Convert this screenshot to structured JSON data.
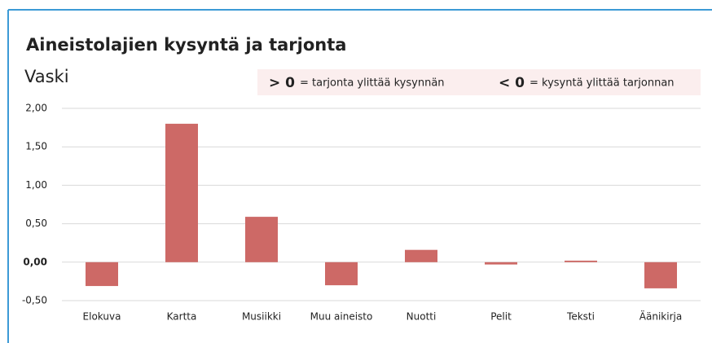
{
  "chart_data": {
    "type": "bar",
    "title": "Aineistolajien kysyntä ja tarjonta",
    "subtitle": "Vaski",
    "annotations": [
      {
        "symbol": "> 0",
        "text": "= tarjonta ylittää kysynnän"
      },
      {
        "symbol": "< 0",
        "text": "= kysyntä ylittää tarjonnan"
      }
    ],
    "categories": [
      "Elokuva",
      "Kartta",
      "Musiikki",
      "Muu aineisto",
      "Nuotti",
      "Pelit",
      "Teksti",
      "Äänikirja"
    ],
    "values": [
      -0.31,
      1.8,
      0.59,
      -0.3,
      0.16,
      -0.03,
      0.02,
      -0.34
    ],
    "color": "#cd6966",
    "ylim": [
      -0.5,
      2.0
    ],
    "yticks": [
      {
        "value": -0.5,
        "label": "-0,50"
      },
      {
        "value": 0,
        "label": "0,00"
      },
      {
        "value": 0.5,
        "label": "0,50"
      },
      {
        "value": 1.0,
        "label": "1,00"
      },
      {
        "value": 1.5,
        "label": "1,50"
      },
      {
        "value": 2.0,
        "label": "2,00"
      }
    ],
    "grid": true
  }
}
